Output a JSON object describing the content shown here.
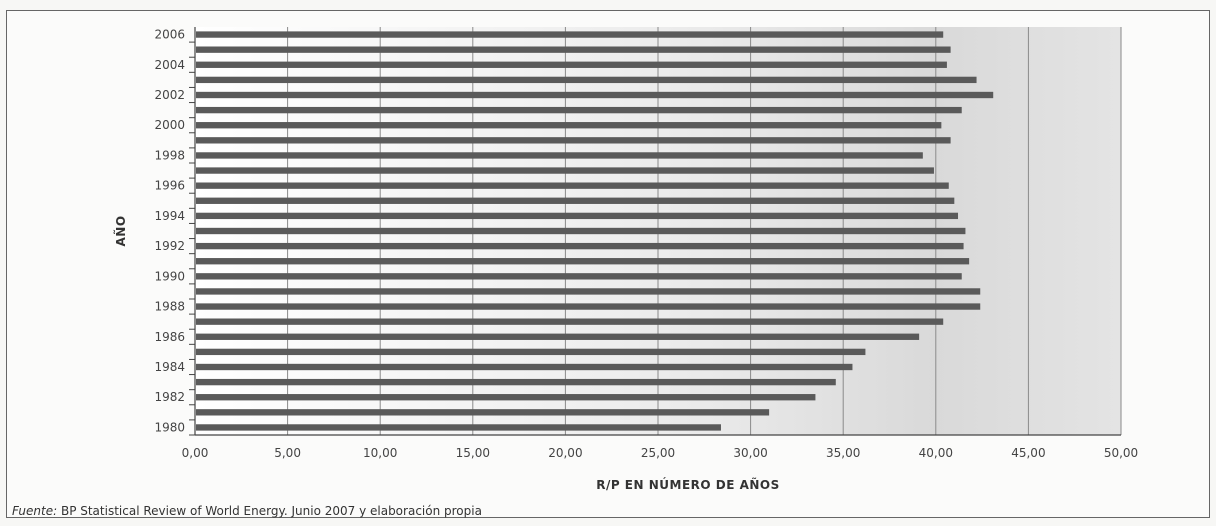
{
  "chart_data": {
    "type": "bar",
    "orientation": "horizontal",
    "xlabel": "R/P EN NÚMERO DE AÑOS",
    "ylabel": "AÑO",
    "xlim": [
      0,
      50
    ],
    "x_ticks": [
      "0,00",
      "5,00",
      "10,00",
      "15,00",
      "20,00",
      "25,00",
      "30,00",
      "35,00",
      "40,00",
      "45,00",
      "50,00"
    ],
    "y_tick_labels": [
      "1980",
      "1982",
      "1984",
      "1986",
      "1988",
      "1990",
      "1992",
      "1994",
      "1996",
      "1998",
      "2000",
      "2002",
      "2004",
      "2006"
    ],
    "categories": [
      "1980",
      "1981",
      "1982",
      "1983",
      "1984",
      "1985",
      "1986",
      "1987",
      "1988",
      "1989",
      "1990",
      "1991",
      "1992",
      "1993",
      "1994",
      "1995",
      "1996",
      "1997",
      "1998",
      "1999",
      "2000",
      "2001",
      "2002",
      "2003",
      "2004",
      "2005",
      "2006"
    ],
    "values": [
      28.4,
      31.0,
      33.5,
      34.6,
      35.5,
      36.2,
      39.1,
      40.4,
      42.4,
      42.4,
      41.4,
      41.8,
      41.5,
      41.6,
      41.2,
      41.0,
      40.7,
      39.9,
      39.3,
      40.8,
      40.3,
      41.4,
      43.1,
      42.2,
      40.6,
      40.8,
      40.4
    ],
    "grid": true,
    "bar_color": "#5a5a5a"
  },
  "source_note": {
    "label": "Fuente:",
    "text": " BP Statistical Review of World Energy. Junio 2007 y elaboración propia"
  }
}
